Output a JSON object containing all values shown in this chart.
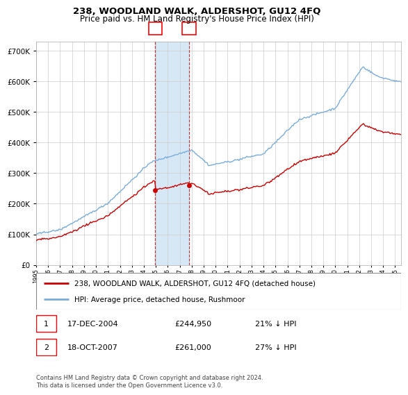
{
  "title": "238, WOODLAND WALK, ALDERSHOT, GU12 4FQ",
  "subtitle": "Price paid vs. HM Land Registry's House Price Index (HPI)",
  "ytick_values": [
    0,
    100000,
    200000,
    300000,
    400000,
    500000,
    600000,
    700000
  ],
  "ylim": [
    0,
    730000
  ],
  "sale1": {
    "date": "17-DEC-2004",
    "price": 244950,
    "label": "1",
    "hpi_pct": "21% ↓ HPI",
    "year": 2004.96
  },
  "sale2": {
    "date": "18-OCT-2007",
    "price": 261000,
    "label": "2",
    "hpi_pct": "27% ↓ HPI",
    "year": 2007.79
  },
  "legend_property": "238, WOODLAND WALK, ALDERSHOT, GU12 4FQ (detached house)",
  "legend_hpi": "HPI: Average price, detached house, Rushmoor",
  "property_color": "#cc0000",
  "hpi_color": "#7aaddc",
  "shade_color": "#d6e8f5",
  "background_color": "#ffffff",
  "grid_color": "#cccccc",
  "footnote": "Contains HM Land Registry data © Crown copyright and database right 2024.\nThis data is licensed under the Open Government Licence v3.0.",
  "xlim": [
    1995,
    2025.5
  ],
  "title_fontsize": 9.5,
  "subtitle_fontsize": 8.5
}
